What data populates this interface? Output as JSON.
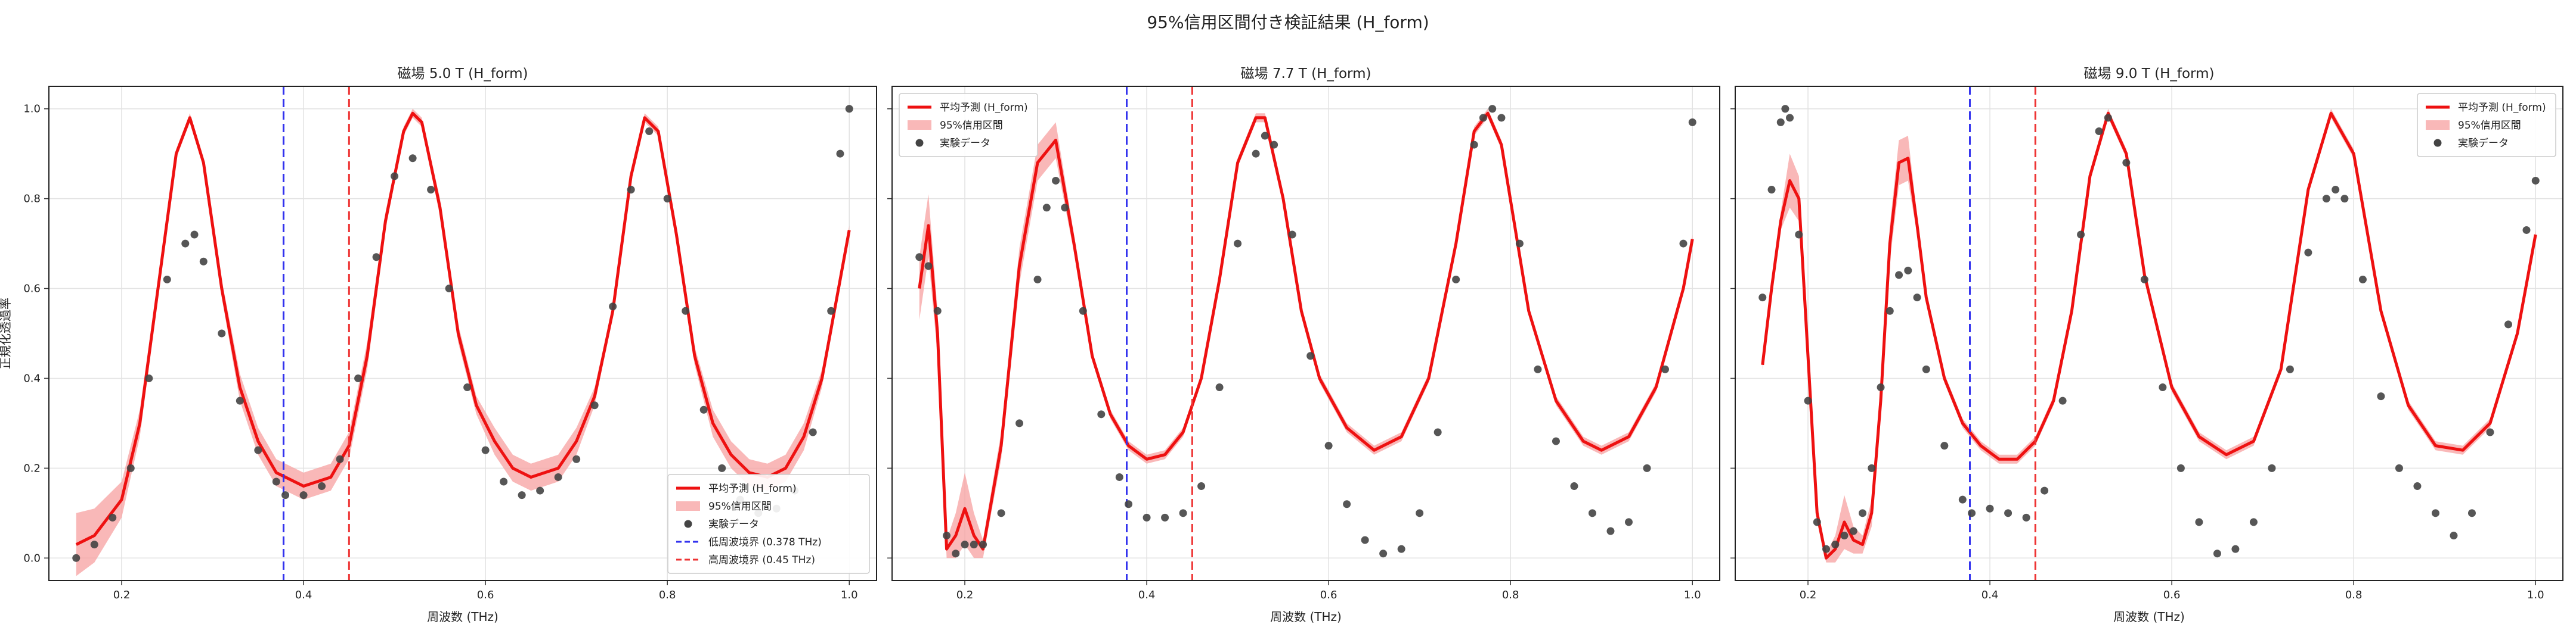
{
  "figure": {
    "suptitle": "95%信用区間付き検証結果 (H_form)"
  },
  "colors": {
    "mean": "#ee1111",
    "band": "#f7a0a0",
    "points": "#444444",
    "lower_boundary": "#3333ee",
    "upper_boundary": "#ee3333",
    "grid": "#e2e2e2"
  },
  "chart_data": [
    {
      "type": "line",
      "title": "磁場 5.0 T (H_form)",
      "xlabel": "周波数 (THz)",
      "ylabel": "正規化透過率",
      "xlim": [
        0.12,
        1.03
      ],
      "ylim": [
        -0.05,
        1.05
      ],
      "xticks": [
        "0.2",
        "0.4",
        "0.6",
        "0.8",
        "1.0"
      ],
      "yticks": [
        "0.0",
        "0.2",
        "0.4",
        "0.6",
        "0.8",
        "1.0"
      ],
      "grid": true,
      "legend_position": "lower-right",
      "legend": [
        "平均予測 (H_form)",
        "95%信用区間",
        "実験データ",
        "低周波境界 (0.378 THz)",
        "高周波境界 (0.45 THz)"
      ],
      "vlines": [
        0.378,
        0.45
      ],
      "mean_x": [
        0.15,
        0.17,
        0.2,
        0.22,
        0.24,
        0.26,
        0.275,
        0.29,
        0.31,
        0.33,
        0.35,
        0.37,
        0.4,
        0.43,
        0.45,
        0.47,
        0.49,
        0.51,
        0.52,
        0.53,
        0.55,
        0.57,
        0.59,
        0.61,
        0.63,
        0.65,
        0.68,
        0.7,
        0.72,
        0.74,
        0.76,
        0.775,
        0.79,
        0.81,
        0.83,
        0.85,
        0.87,
        0.89,
        0.91,
        0.93,
        0.95,
        0.97,
        0.99,
        1.0
      ],
      "mean_y": [
        0.03,
        0.05,
        0.13,
        0.3,
        0.6,
        0.9,
        0.98,
        0.88,
        0.6,
        0.38,
        0.26,
        0.19,
        0.16,
        0.18,
        0.25,
        0.45,
        0.75,
        0.95,
        0.99,
        0.97,
        0.78,
        0.5,
        0.34,
        0.26,
        0.2,
        0.18,
        0.2,
        0.26,
        0.36,
        0.55,
        0.85,
        0.98,
        0.95,
        0.72,
        0.45,
        0.3,
        0.23,
        0.19,
        0.18,
        0.2,
        0.27,
        0.4,
        0.62,
        0.73
      ],
      "band_halfwidth": [
        0.07,
        0.06,
        0.04,
        0.03,
        0.02,
        0.01,
        0.01,
        0.01,
        0.02,
        0.03,
        0.03,
        0.03,
        0.03,
        0.03,
        0.03,
        0.03,
        0.02,
        0.01,
        0.01,
        0.01,
        0.02,
        0.02,
        0.02,
        0.03,
        0.03,
        0.03,
        0.03,
        0.03,
        0.02,
        0.01,
        0.01,
        0.01,
        0.01,
        0.02,
        0.02,
        0.03,
        0.03,
        0.03,
        0.03,
        0.03,
        0.03,
        0.02,
        0.01,
        0.01
      ],
      "points_x": [
        0.15,
        0.17,
        0.19,
        0.21,
        0.23,
        0.25,
        0.27,
        0.28,
        0.29,
        0.31,
        0.33,
        0.35,
        0.37,
        0.38,
        0.4,
        0.42,
        0.44,
        0.46,
        0.48,
        0.5,
        0.52,
        0.54,
        0.56,
        0.58,
        0.6,
        0.62,
        0.64,
        0.66,
        0.68,
        0.7,
        0.72,
        0.74,
        0.76,
        0.78,
        0.8,
        0.82,
        0.84,
        0.86,
        0.88,
        0.9,
        0.92,
        0.94,
        0.96,
        0.98,
        0.99,
        1.0
      ],
      "points_y": [
        0.0,
        0.03,
        0.09,
        0.2,
        0.4,
        0.62,
        0.7,
        0.72,
        0.66,
        0.5,
        0.35,
        0.24,
        0.17,
        0.14,
        0.14,
        0.16,
        0.22,
        0.4,
        0.67,
        0.85,
        0.89,
        0.82,
        0.6,
        0.38,
        0.24,
        0.17,
        0.14,
        0.15,
        0.18,
        0.22,
        0.34,
        0.56,
        0.82,
        0.95,
        0.8,
        0.55,
        0.33,
        0.2,
        0.13,
        0.1,
        0.11,
        0.15,
        0.28,
        0.55,
        0.9,
        1.0
      ]
    },
    {
      "type": "line",
      "title": "磁場 7.7 T (H_form)",
      "xlabel": "周波数 (THz)",
      "ylabel": "",
      "xlim": [
        0.12,
        1.03
      ],
      "ylim": [
        -0.05,
        1.05
      ],
      "xticks": [
        "0.2",
        "0.4",
        "0.6",
        "0.8",
        "1.0"
      ],
      "yticks": [],
      "grid": true,
      "legend_position": "upper-left",
      "legend": [
        "平均予測 (H_form)",
        "95%信用区間",
        "実験データ"
      ],
      "vlines": [
        0.378,
        0.45
      ],
      "mean_x": [
        0.15,
        0.16,
        0.17,
        0.18,
        0.19,
        0.2,
        0.21,
        0.22,
        0.24,
        0.26,
        0.28,
        0.3,
        0.32,
        0.34,
        0.36,
        0.38,
        0.4,
        0.42,
        0.44,
        0.46,
        0.48,
        0.5,
        0.52,
        0.53,
        0.55,
        0.57,
        0.59,
        0.62,
        0.65,
        0.68,
        0.71,
        0.74,
        0.76,
        0.775,
        0.79,
        0.82,
        0.85,
        0.88,
        0.9,
        0.93,
        0.96,
        0.99,
        1.0
      ],
      "mean_y": [
        0.6,
        0.74,
        0.5,
        0.02,
        0.05,
        0.11,
        0.05,
        0.02,
        0.25,
        0.65,
        0.88,
        0.93,
        0.7,
        0.45,
        0.32,
        0.25,
        0.22,
        0.23,
        0.28,
        0.4,
        0.62,
        0.88,
        0.98,
        0.98,
        0.8,
        0.55,
        0.4,
        0.29,
        0.24,
        0.27,
        0.4,
        0.7,
        0.95,
        0.99,
        0.92,
        0.55,
        0.35,
        0.26,
        0.24,
        0.27,
        0.38,
        0.6,
        0.71
      ],
      "band_halfwidth": [
        0.07,
        0.07,
        0.05,
        0.02,
        0.05,
        0.08,
        0.05,
        0.02,
        0.03,
        0.04,
        0.04,
        0.04,
        0.02,
        0.01,
        0.01,
        0.01,
        0.01,
        0.01,
        0.01,
        0.01,
        0.01,
        0.01,
        0.01,
        0.01,
        0.01,
        0.01,
        0.01,
        0.01,
        0.01,
        0.01,
        0.01,
        0.01,
        0.01,
        0.01,
        0.01,
        0.01,
        0.01,
        0.01,
        0.01,
        0.01,
        0.01,
        0.01,
        0.01
      ],
      "points_x": [
        0.15,
        0.16,
        0.17,
        0.18,
        0.19,
        0.2,
        0.21,
        0.22,
        0.24,
        0.26,
        0.28,
        0.29,
        0.3,
        0.31,
        0.33,
        0.35,
        0.37,
        0.38,
        0.4,
        0.42,
        0.44,
        0.46,
        0.48,
        0.5,
        0.52,
        0.53,
        0.54,
        0.56,
        0.58,
        0.6,
        0.62,
        0.64,
        0.66,
        0.68,
        0.7,
        0.72,
        0.74,
        0.76,
        0.77,
        0.78,
        0.79,
        0.81,
        0.83,
        0.85,
        0.87,
        0.89,
        0.91,
        0.93,
        0.95,
        0.97,
        0.99,
        1.0
      ],
      "points_y": [
        0.67,
        0.65,
        0.55,
        0.05,
        0.01,
        0.03,
        0.03,
        0.03,
        0.1,
        0.3,
        0.62,
        0.78,
        0.84,
        0.78,
        0.55,
        0.32,
        0.18,
        0.12,
        0.09,
        0.09,
        0.1,
        0.16,
        0.38,
        0.7,
        0.9,
        0.94,
        0.92,
        0.72,
        0.45,
        0.25,
        0.12,
        0.04,
        0.01,
        0.02,
        0.1,
        0.28,
        0.62,
        0.92,
        0.98,
        1.0,
        0.98,
        0.7,
        0.42,
        0.26,
        0.16,
        0.1,
        0.06,
        0.08,
        0.2,
        0.42,
        0.7,
        0.97
      ]
    },
    {
      "type": "line",
      "title": "磁場 9.0 T (H_form)",
      "xlabel": "周波数 (THz)",
      "ylabel": "",
      "xlim": [
        0.12,
        1.03
      ],
      "ylim": [
        -0.05,
        1.05
      ],
      "xticks": [
        "0.2",
        "0.4",
        "0.6",
        "0.8",
        "1.0"
      ],
      "yticks": [],
      "grid": true,
      "legend_position": "upper-right",
      "legend": [
        "平均予測 (H_form)",
        "95%信用区間",
        "実験データ"
      ],
      "vlines": [
        0.378,
        0.45
      ],
      "mean_x": [
        0.15,
        0.16,
        0.17,
        0.18,
        0.19,
        0.2,
        0.21,
        0.22,
        0.23,
        0.24,
        0.25,
        0.26,
        0.27,
        0.28,
        0.29,
        0.3,
        0.31,
        0.32,
        0.33,
        0.35,
        0.37,
        0.39,
        0.41,
        0.43,
        0.45,
        0.47,
        0.49,
        0.51,
        0.53,
        0.55,
        0.57,
        0.6,
        0.63,
        0.66,
        0.69,
        0.72,
        0.75,
        0.775,
        0.8,
        0.83,
        0.86,
        0.89,
        0.92,
        0.95,
        0.98,
        1.0
      ],
      "mean_y": [
        0.43,
        0.6,
        0.75,
        0.84,
        0.8,
        0.45,
        0.1,
        0.0,
        0.02,
        0.08,
        0.04,
        0.03,
        0.1,
        0.35,
        0.7,
        0.88,
        0.89,
        0.74,
        0.58,
        0.4,
        0.3,
        0.25,
        0.22,
        0.22,
        0.26,
        0.35,
        0.55,
        0.85,
        0.99,
        0.9,
        0.63,
        0.38,
        0.27,
        0.23,
        0.26,
        0.42,
        0.82,
        0.99,
        0.9,
        0.55,
        0.34,
        0.25,
        0.24,
        0.3,
        0.5,
        0.72
      ],
      "band_halfwidth": [
        0.01,
        0.01,
        0.02,
        0.06,
        0.05,
        0.03,
        0.02,
        0.01,
        0.03,
        0.06,
        0.03,
        0.02,
        0.03,
        0.04,
        0.04,
        0.05,
        0.05,
        0.02,
        0.01,
        0.01,
        0.01,
        0.01,
        0.01,
        0.01,
        0.01,
        0.01,
        0.01,
        0.01,
        0.01,
        0.01,
        0.01,
        0.01,
        0.01,
        0.01,
        0.01,
        0.01,
        0.01,
        0.01,
        0.01,
        0.01,
        0.01,
        0.01,
        0.01,
        0.01,
        0.01,
        0.01
      ],
      "points_x": [
        0.15,
        0.16,
        0.17,
        0.175,
        0.18,
        0.19,
        0.2,
        0.21,
        0.22,
        0.23,
        0.24,
        0.25,
        0.26,
        0.27,
        0.28,
        0.29,
        0.3,
        0.31,
        0.32,
        0.33,
        0.35,
        0.37,
        0.38,
        0.4,
        0.42,
        0.44,
        0.46,
        0.48,
        0.5,
        0.52,
        0.53,
        0.55,
        0.57,
        0.59,
        0.61,
        0.63,
        0.65,
        0.67,
        0.69,
        0.71,
        0.73,
        0.75,
        0.77,
        0.78,
        0.79,
        0.81,
        0.83,
        0.85,
        0.87,
        0.89,
        0.91,
        0.93,
        0.95,
        0.97,
        0.99,
        1.0
      ],
      "points_y": [
        0.58,
        0.82,
        0.97,
        1.0,
        0.98,
        0.72,
        0.35,
        0.08,
        0.02,
        0.03,
        0.05,
        0.06,
        0.1,
        0.2,
        0.38,
        0.55,
        0.63,
        0.64,
        0.58,
        0.42,
        0.25,
        0.13,
        0.1,
        0.11,
        0.1,
        0.09,
        0.15,
        0.35,
        0.72,
        0.95,
        0.98,
        0.88,
        0.62,
        0.38,
        0.2,
        0.08,
        0.01,
        0.02,
        0.08,
        0.2,
        0.42,
        0.68,
        0.8,
        0.82,
        0.8,
        0.62,
        0.36,
        0.2,
        0.16,
        0.1,
        0.05,
        0.1,
        0.28,
        0.52,
        0.73,
        0.84
      ]
    }
  ]
}
